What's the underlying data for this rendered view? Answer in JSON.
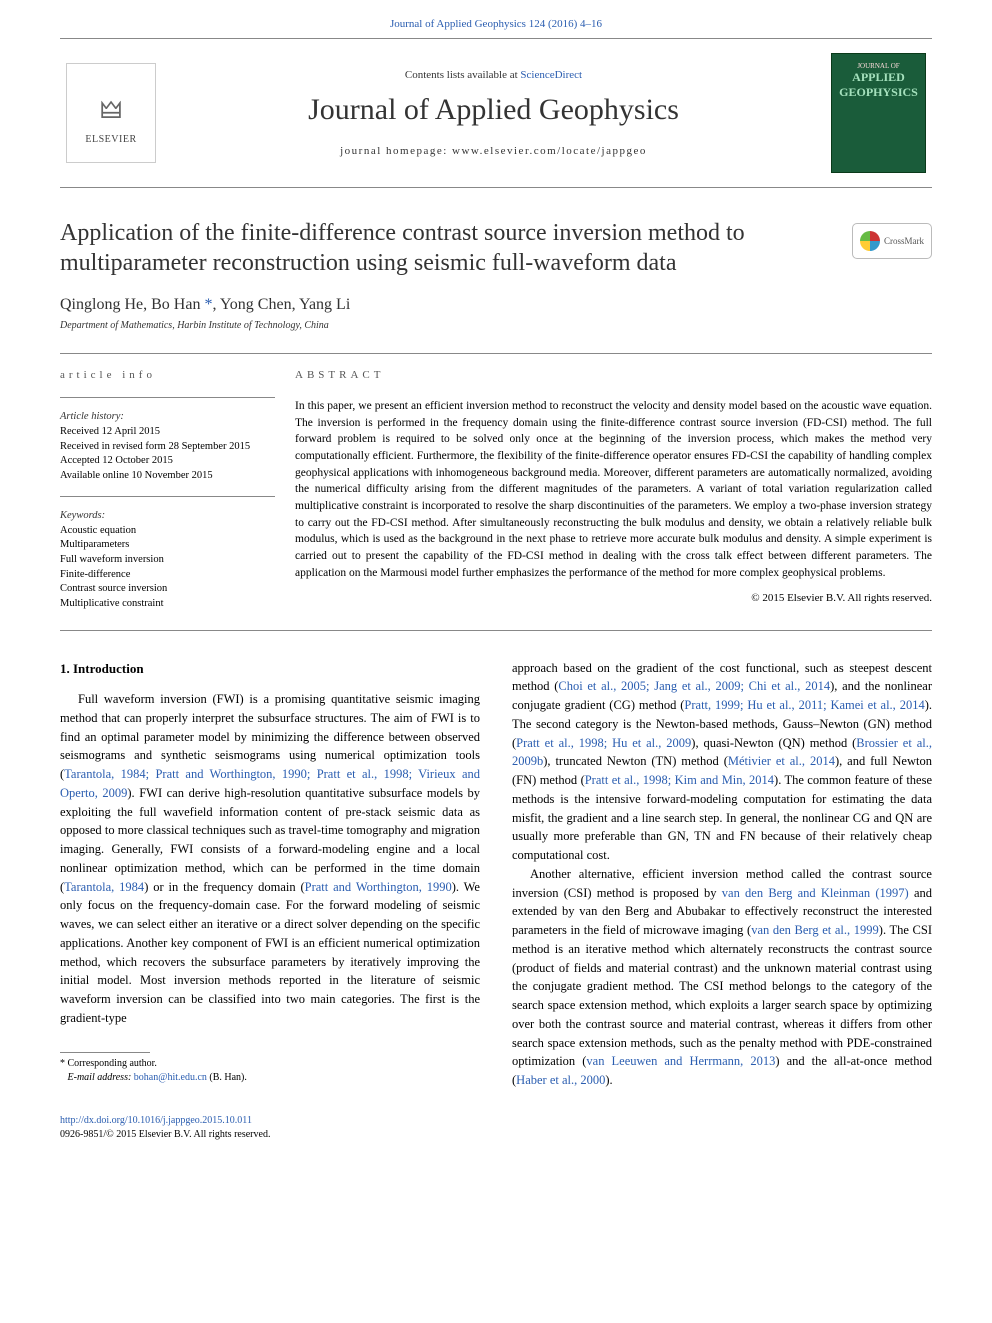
{
  "header": {
    "citation_line": "Journal of Applied Geophysics 124 (2016) 4–16",
    "contents_prefix": "Contents lists available at ",
    "contents_link": "ScienceDirect",
    "journal_name": "Journal of Applied Geophysics",
    "homepage_label": "journal homepage: ",
    "homepage_url": "www.elsevier.com/locate/jappgeo",
    "elsevier_name": "ELSEVIER",
    "cover_line1": "JOURNAL OF",
    "cover_line2": "APPLIED",
    "cover_line3": "GEOPHYSICS"
  },
  "crossmark_label": "CrossMark",
  "article": {
    "title": "Application of the finite-difference contrast source inversion method to multiparameter reconstruction using seismic full-waveform data",
    "authors_html": "Qinglong He, Bo Han *, Yong Chen, Yang Li",
    "authors": [
      {
        "name": "Qinglong He"
      },
      {
        "name": "Bo Han",
        "corr": true
      },
      {
        "name": "Yong Chen"
      },
      {
        "name": "Yang Li"
      }
    ],
    "affiliation": "Department of Mathematics, Harbin Institute of Technology, China"
  },
  "article_info": {
    "heading": "article info",
    "history_label": "Article history:",
    "received": "Received 12 April 2015",
    "revised": "Received in revised form 28 September 2015",
    "accepted": "Accepted 12 October 2015",
    "online": "Available online 10 November 2015",
    "keywords_label": "Keywords:",
    "keywords": [
      "Acoustic equation",
      "Multiparameters",
      "Full waveform inversion",
      "Finite-difference",
      "Contrast source inversion",
      "Multiplicative constraint"
    ]
  },
  "abstract": {
    "heading": "ABSTRACT",
    "text": "In this paper, we present an efficient inversion method to reconstruct the velocity and density model based on the acoustic wave equation. The inversion is performed in the frequency domain using the finite-difference contrast source inversion (FD-CSI) method. The full forward problem is required to be solved only once at the beginning of the inversion process, which makes the method very computationally efficient. Furthermore, the flexibility of the finite-difference operator ensures FD-CSI the capability of handling complex geophysical applications with inhomogeneous background media. Moreover, different parameters are automatically normalized, avoiding the numerical difficulty arising from the different magnitudes of the parameters. A variant of total variation regularization called multiplicative constraint is incorporated to resolve the sharp discontinuities of the parameters. We employ a two-phase inversion strategy to carry out the FD-CSI method. After simultaneously reconstructing the bulk modulus and density, we obtain a relatively reliable bulk modulus, which is used as the background in the next phase to retrieve more accurate bulk modulus and density. A simple experiment is carried out to present the capability of the FD-CSI method in dealing with the cross talk effect between different parameters. The application on the Marmousi model further emphasizes the performance of the method for more complex geophysical problems.",
    "copyright": "© 2015 Elsevier B.V. All rights reserved."
  },
  "body": {
    "section_heading": "1. Introduction",
    "col1_p1_a": "Full waveform inversion (FWI) is a promising quantitative seismic imaging method that can properly interpret the subsurface structures. The aim of FWI is to find an optimal parameter model by minimizing the difference between observed seismograms and synthetic seismograms using numerical optimization tools (",
    "col1_p1_cite1": "Tarantola, 1984; Pratt and Worthington, 1990; Pratt et al., 1998; Virieux and Operto, 2009",
    "col1_p1_b": "). FWI can derive high-resolution quantitative subsurface models by exploiting the full wavefield information content of pre-stack seismic data as opposed to more classical techniques such as travel-time tomography and migration imaging. Generally, FWI consists of a forward-modeling engine and a local nonlinear optimization method, which can be performed in the time domain (",
    "col1_p1_cite2": "Tarantola, 1984",
    "col1_p1_c": ") or in the frequency domain (",
    "col1_p1_cite3": "Pratt and Worthington, 1990",
    "col1_p1_d": "). We only focus on the frequency-domain case. For the forward modeling of seismic waves, we can select either an iterative or a direct solver depending on the specific applications. Another key component of FWI is an efficient numerical optimization method, which recovers the subsurface parameters by iteratively improving the initial model. Most inversion methods reported in the literature of seismic waveform inversion can be classified into two main categories. The first is the gradient-type",
    "col2_p1_a": "approach based on the gradient of the cost functional, such as steepest descent method (",
    "col2_p1_cite1": "Choi et al., 2005; Jang et al., 2009; Chi et al., 2014",
    "col2_p1_b": "), and the nonlinear conjugate gradient (CG) method (",
    "col2_p1_cite2": "Pratt, 1999; Hu et al., 2011; Kamei et al., 2014",
    "col2_p1_c": "). The second category is the Newton-based methods, Gauss–Newton (GN) method (",
    "col2_p1_cite3": "Pratt et al., 1998; Hu et al., 2009",
    "col2_p1_d": "), quasi-Newton (QN) method (",
    "col2_p1_cite4": "Brossier et al., 2009b",
    "col2_p1_e": "), truncated Newton (TN) method (",
    "col2_p1_cite5": "Métivier et al., 2014",
    "col2_p1_f": "), and full Newton (FN) method (",
    "col2_p1_cite6": "Pratt et al., 1998; Kim and Min, 2014",
    "col2_p1_g": "). The common feature of these methods is the intensive forward-modeling computation for estimating the data misfit, the gradient and a line search step. In general, the nonlinear CG and QN are usually more preferable than GN, TN and FN because of their relatively cheap computational cost.",
    "col2_p2_a": "Another alternative, efficient inversion method called the contrast source inversion (CSI) method is proposed by ",
    "col2_p2_cite1": "van den Berg and Kleinman (1997)",
    "col2_p2_b": " and extended by van den Berg and Abubakar to effectively reconstruct the interested parameters in the field of microwave imaging (",
    "col2_p2_cite2": "van den Berg et al., 1999",
    "col2_p2_c": "). The CSI method is an iterative method which alternately reconstructs the contrast source (product of fields and material contrast) and the unknown material contrast using the conjugate gradient method. The CSI method belongs to the category of the search space extension method, which exploits a larger search space by optimizing over both the contrast source and material contrast, whereas it differs from other search space extension methods, such as the penalty method with PDE-constrained optimization (",
    "col2_p2_cite3": "van Leeuwen and Herrmann, 2013",
    "col2_p2_d": ") and the all-at-once method (",
    "col2_p2_cite4": "Haber et al., 2000",
    "col2_p2_e": ")."
  },
  "footnote": {
    "corr_label": "Corresponding author.",
    "email_label": "E-mail address: ",
    "email": "bohan@hit.edu.cn",
    "email_name": " (B. Han)."
  },
  "footer": {
    "doi": "http://dx.doi.org/10.1016/j.jappgeo.2015.10.011",
    "issn_line": "0926-9851/© 2015 Elsevier B.V. All rights reserved."
  },
  "colors": {
    "link": "#2a5db0",
    "rule": "#888888",
    "text": "#000000",
    "cover_bg": "#1a5c3a"
  }
}
